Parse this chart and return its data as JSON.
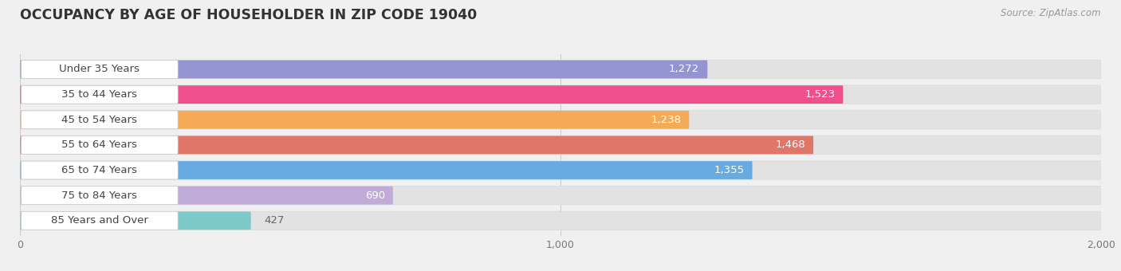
{
  "title": "OCCUPANCY BY AGE OF HOUSEHOLDER IN ZIP CODE 19040",
  "source": "Source: ZipAtlas.com",
  "categories": [
    "Under 35 Years",
    "35 to 44 Years",
    "45 to 54 Years",
    "55 to 64 Years",
    "65 to 74 Years",
    "75 to 84 Years",
    "85 Years and Over"
  ],
  "values": [
    1272,
    1523,
    1238,
    1468,
    1355,
    690,
    427
  ],
  "bar_colors": [
    "#9090d0",
    "#f04888",
    "#f5a84e",
    "#e07060",
    "#60a8e0",
    "#c0a8d8",
    "#78c8c8"
  ],
  "xlim": [
    0,
    2000
  ],
  "xticks": [
    0,
    1000,
    2000
  ],
  "xtick_labels": [
    "0",
    "1,000",
    "2,000"
  ],
  "background_color": "#f0f0f0",
  "bar_bg_color": "#e2e2e2",
  "bar_bg_border": "#d8d8d8",
  "title_fontsize": 12.5,
  "source_fontsize": 8.5,
  "label_fontsize": 9.5,
  "value_fontsize": 9.5
}
